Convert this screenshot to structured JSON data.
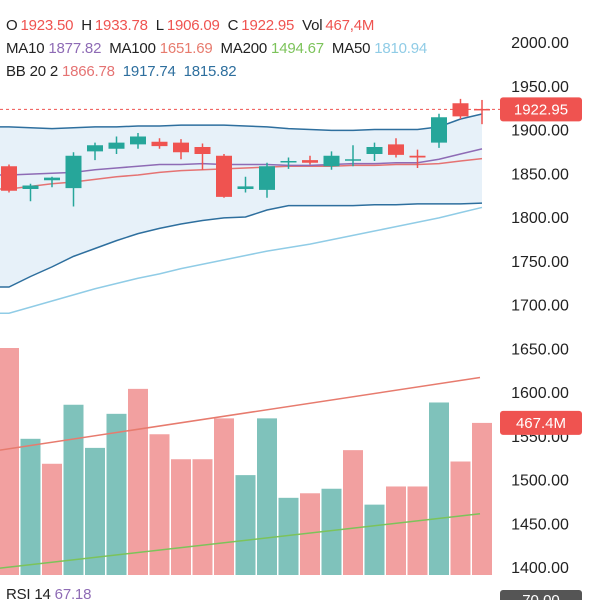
{
  "ohlc": {
    "o_label": "O",
    "o_value": "1923.50",
    "h_label": "H",
    "h_value": "1933.78",
    "l_label": "L",
    "l_value": "1906.09",
    "c_label": "C",
    "c_value": "1922.95",
    "vol_label": "Vol",
    "vol_value": "467,4M"
  },
  "ma": {
    "ma10_label": "MA10",
    "ma10_value": "1877.82",
    "ma100_label": "MA100",
    "ma100_value": "1651.69",
    "ma200_label": "MA200",
    "ma200_value": "1494.67",
    "ma50_label": "MA50",
    "ma50_value": "1810.94"
  },
  "bb": {
    "label": "BB 20 2",
    "mid": "1866.78",
    "upper": "1917.74",
    "lower": "1815.82"
  },
  "rsi": {
    "label": "RSI 14",
    "value": "67.18",
    "tag": "70.00"
  },
  "colors": {
    "up": "#26a69a",
    "down": "#ef5350",
    "up_vol": "#7fc2bb",
    "down_vol": "#f2a0a0",
    "ma10": "#8e6bb5",
    "ma50": "#90cce6",
    "ma100": "#e77b6e",
    "ma200": "#7cc35a",
    "bb_mid": "#e57373",
    "bb_band": "#2e6f9e",
    "bb_fill": "#e3eff8"
  },
  "chart_data": {
    "type": "candlestick",
    "y_axis": {
      "ticks": [
        "2000.00",
        "1950.00",
        "1900.00",
        "1850.00",
        "1800.00",
        "1750.00",
        "1700.00",
        "1650.00",
        "1600.00",
        "1550.00",
        "1500.00",
        "1450.00",
        "1400.00"
      ],
      "range": [
        1390,
        2025
      ]
    },
    "last_price_tag": "1922.95",
    "volume_tag": "467.4M",
    "candles": [
      {
        "o": 1858,
        "h": 1860,
        "l": 1828,
        "c": 1830
      },
      {
        "o": 1832,
        "h": 1838,
        "l": 1818,
        "c": 1836
      },
      {
        "o": 1842,
        "h": 1846,
        "l": 1834,
        "c": 1845
      },
      {
        "o": 1833,
        "h": 1874,
        "l": 1812,
        "c": 1870
      },
      {
        "o": 1875,
        "h": 1885,
        "l": 1865,
        "c": 1882
      },
      {
        "o": 1878,
        "h": 1892,
        "l": 1872,
        "c": 1885
      },
      {
        "o": 1883,
        "h": 1896,
        "l": 1878,
        "c": 1892
      },
      {
        "o": 1886,
        "h": 1890,
        "l": 1878,
        "c": 1881
      },
      {
        "o": 1885,
        "h": 1889,
        "l": 1866,
        "c": 1874
      },
      {
        "o": 1880,
        "h": 1884,
        "l": 1854,
        "c": 1872
      },
      {
        "o": 1870,
        "h": 1872,
        "l": 1822,
        "c": 1823
      },
      {
        "o": 1832,
        "h": 1846,
        "l": 1828,
        "c": 1835
      },
      {
        "o": 1831,
        "h": 1862,
        "l": 1822,
        "c": 1858
      },
      {
        "o": 1863,
        "h": 1868,
        "l": 1855,
        "c": 1864
      },
      {
        "o": 1865,
        "h": 1870,
        "l": 1860,
        "c": 1862
      },
      {
        "o": 1858,
        "h": 1875,
        "l": 1854,
        "c": 1870
      },
      {
        "o": 1865,
        "h": 1882,
        "l": 1858,
        "c": 1866
      },
      {
        "o": 1872,
        "h": 1885,
        "l": 1864,
        "c": 1880
      },
      {
        "o": 1883,
        "h": 1890,
        "l": 1868,
        "c": 1871
      },
      {
        "o": 1870,
        "h": 1877,
        "l": 1856,
        "c": 1868
      },
      {
        "o": 1885,
        "h": 1918,
        "l": 1879,
        "c": 1914
      },
      {
        "o": 1930,
        "h": 1935,
        "l": 1912,
        "c": 1915
      },
      {
        "o": 1923.5,
        "h": 1933.78,
        "l": 1906.09,
        "c": 1922.95
      }
    ],
    "volume": [
      {
        "v": 100,
        "up": false
      },
      {
        "v": 60,
        "up": true
      },
      {
        "v": 49,
        "up": false
      },
      {
        "v": 75,
        "up": true
      },
      {
        "v": 56,
        "up": true
      },
      {
        "v": 71,
        "up": true
      },
      {
        "v": 82,
        "up": false
      },
      {
        "v": 62,
        "up": false
      },
      {
        "v": 51,
        "up": false
      },
      {
        "v": 51,
        "up": false
      },
      {
        "v": 69,
        "up": false
      },
      {
        "v": 44,
        "up": true
      },
      {
        "v": 69,
        "up": true
      },
      {
        "v": 34,
        "up": true
      },
      {
        "v": 36,
        "up": false
      },
      {
        "v": 38,
        "up": true
      },
      {
        "v": 55,
        "up": false
      },
      {
        "v": 31,
        "up": true
      },
      {
        "v": 39,
        "up": false
      },
      {
        "v": 39,
        "up": false
      },
      {
        "v": 76,
        "up": true
      },
      {
        "v": 50,
        "up": false
      },
      {
        "v": 67,
        "up": false
      }
    ],
    "volume_ma": {
      "ma_a_start": 55,
      "ma_a_end": 87,
      "ma_b_start": 3,
      "ma_b_end": 27
    },
    "bb_upper": [
      1903,
      1902,
      1901,
      1902,
      1903,
      1903,
      1904,
      1904,
      1905,
      1905,
      1905,
      1904,
      1903,
      1901,
      1900,
      1899,
      1899,
      1900,
      1900,
      1900,
      1903,
      1912,
      1917.74
    ],
    "bb_lower": [
      1720,
      1732,
      1743,
      1755,
      1764,
      1773,
      1781,
      1787,
      1792,
      1796,
      1799,
      1800,
      1808,
      1813,
      1813,
      1813,
      1813,
      1814,
      1814,
      1815,
      1815,
      1815,
      1815.82
    ],
    "ma10": [
      1848,
      1849,
      1850,
      1851,
      1854,
      1856,
      1858,
      1860,
      1860,
      1861,
      1860,
      1860,
      1860,
      1859,
      1859,
      1860,
      1861,
      1861,
      1862,
      1862,
      1866,
      1872,
      1877.82
    ],
    "bb_mid": [
      1832,
      1835,
      1838,
      1840,
      1843,
      1846,
      1848,
      1851,
      1853,
      1854,
      1855,
      1856,
      1857,
      1858,
      1858,
      1858,
      1859,
      1859,
      1860,
      1860,
      1861,
      1864,
      1866.78
    ],
    "ma50": [
      1690,
      1697,
      1704,
      1711,
      1718,
      1724,
      1730,
      1735,
      1741,
      1746,
      1751,
      1756,
      1761,
      1765,
      1769,
      1774,
      1779,
      1784,
      1789,
      1794,
      1799,
      1805,
      1810.94
    ]
  }
}
